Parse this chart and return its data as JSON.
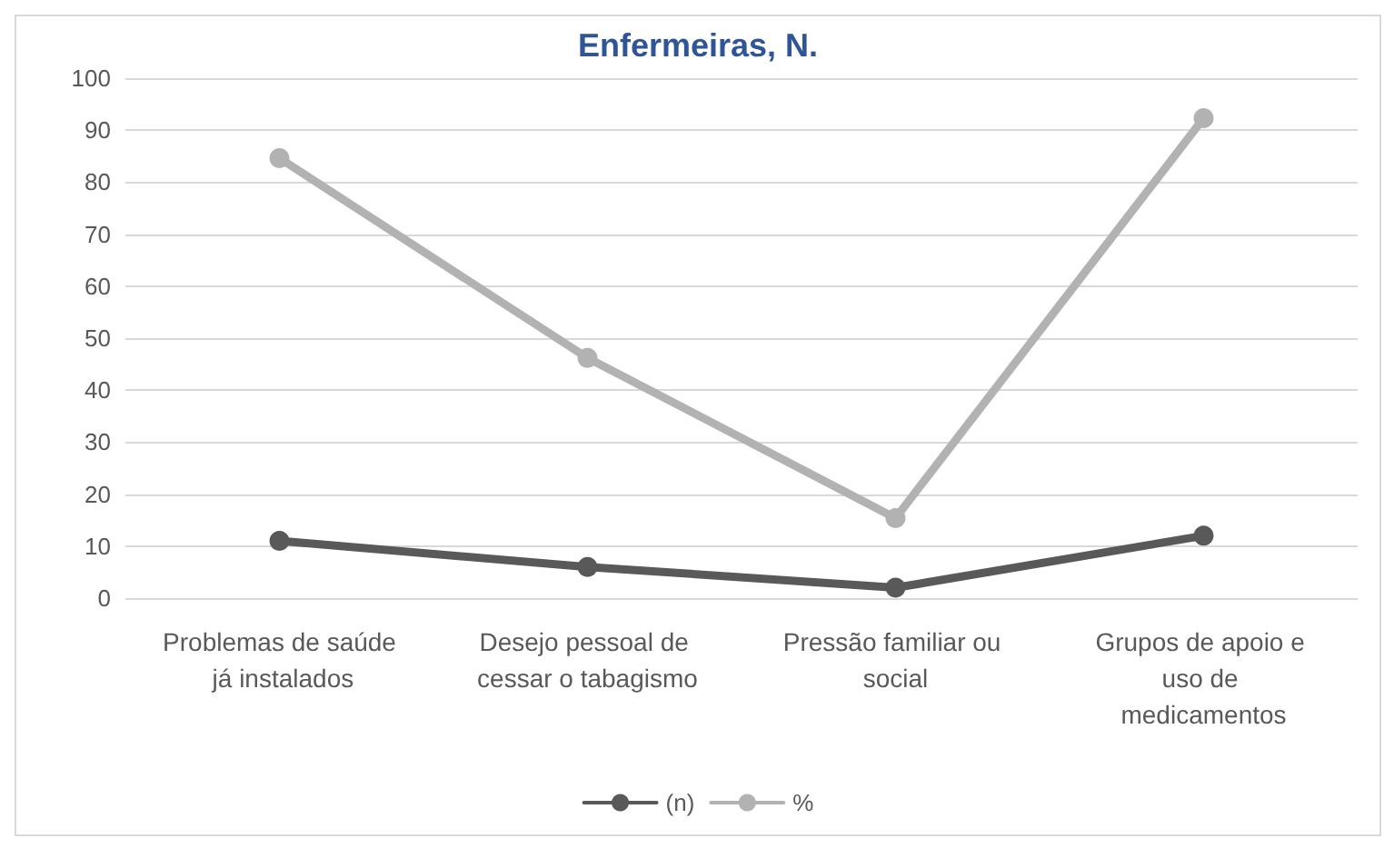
{
  "chart_data": {
    "type": "line",
    "title": "Enfermeiras, N.",
    "categories": [
      "Problemas de saúde já instalados",
      "Desejo pessoal de cessar o tabagismo",
      "Pressão familiar ou social",
      "Grupos de apoio e uso de medicamentos"
    ],
    "series": [
      {
        "name": "(n)",
        "color": "#595959",
        "values": [
          11,
          6,
          2,
          12
        ]
      },
      {
        "name": "%",
        "color": "#b2b2b2",
        "values": [
          84.6,
          46.2,
          15.4,
          92.3
        ]
      }
    ],
    "ylim": [
      0,
      100
    ],
    "yticks": [
      0,
      10,
      20,
      30,
      40,
      50,
      60,
      70,
      80,
      90,
      100
    ],
    "grid": "y",
    "legend": "bottom",
    "marker": "circle",
    "line_style": "solid"
  }
}
